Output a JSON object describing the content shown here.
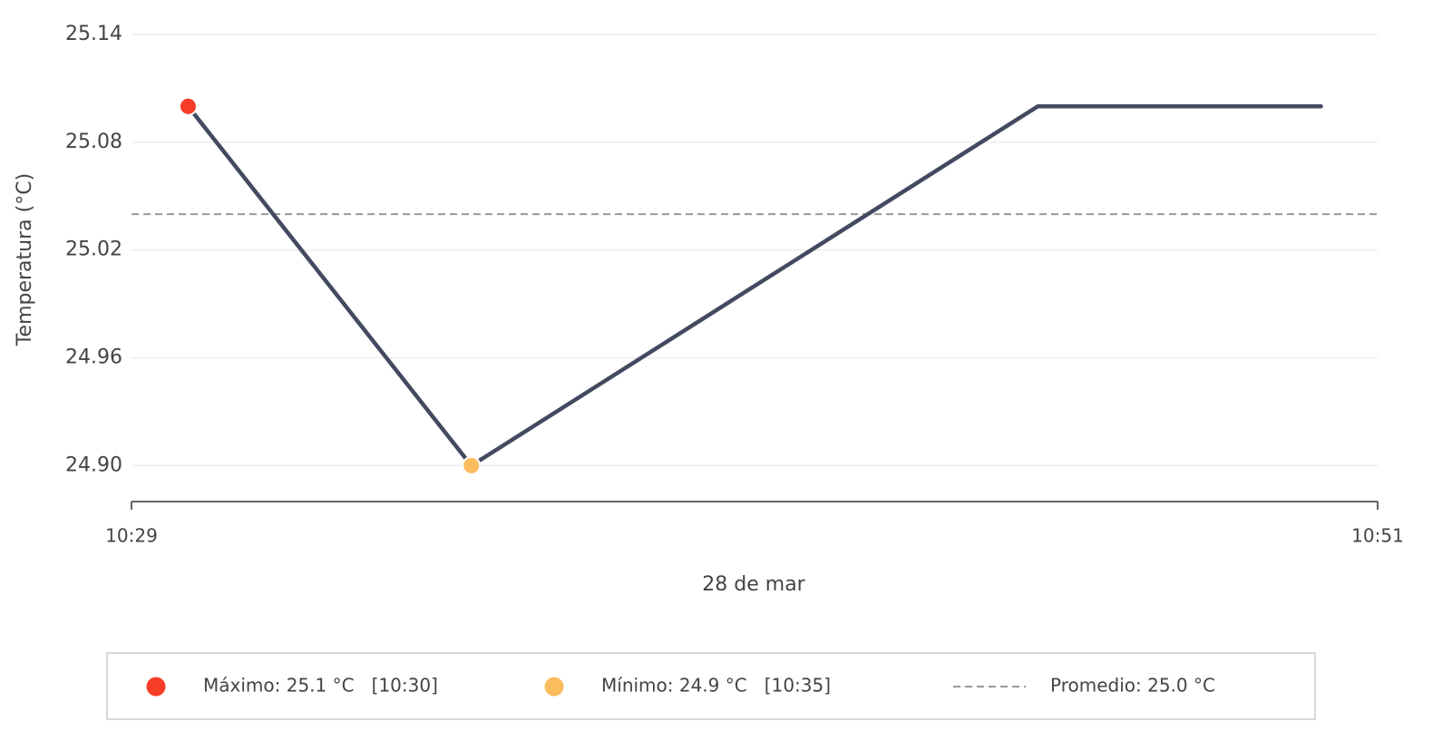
{
  "chart_data": {
    "type": "line",
    "x_label": "28 de mar",
    "y_label": "Temperatura (°C)",
    "x": [
      "10:30",
      "10:35",
      "10:45",
      "10:50"
    ],
    "series": [
      {
        "color": "#434a60",
        "values": [
          25.1,
          24.9,
          25.1,
          25.1
        ]
      }
    ],
    "xlim": [
      "10:29",
      "10:51"
    ],
    "xticks": [
      "10:29",
      "10:51"
    ],
    "ylim": [
      24.88,
      25.14
    ],
    "yticks": [
      {
        "value": 24.9,
        "label": "24.90"
      },
      24.96,
      25.02,
      25.08,
      25.14
    ],
    "grid": true,
    "markers": [
      {
        "name": "Máximo: 25.1 °C   [10:30]",
        "color": "#f73d27",
        "x": "10:30",
        "value": 25.1
      },
      {
        "name": "Mínimo: 24.9 °C   [10:35]",
        "color": "#fbbc5e",
        "x": "10:35",
        "value": 24.9
      }
    ],
    "average": {
      "name": "Promedio: 25.0 °C",
      "color": "#999999",
      "value": 25.04
    },
    "legend": "bottom"
  }
}
